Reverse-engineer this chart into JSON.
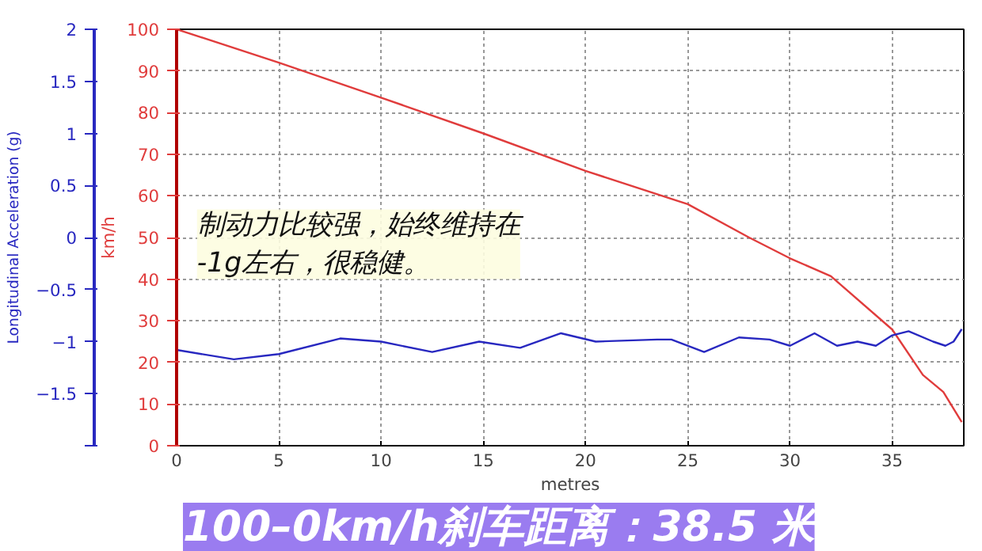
{
  "chart_data": {
    "type": "line",
    "title": "100–0km/h刹车距离：38.5 米",
    "xlabel": "metres",
    "ylabel": "km/h",
    "y2label": "Longitudinal Acceleration (g)",
    "annotations": [
      "制动力比较强，始终维持在\n-1g左右，很稳健。"
    ],
    "xlim": [
      0,
      38.5
    ],
    "xticks": [
      0,
      5,
      10,
      15,
      20,
      25,
      30,
      35
    ],
    "ylim": [
      0,
      100
    ],
    "yticks": [
      0,
      10,
      20,
      30,
      40,
      50,
      60,
      70,
      80,
      90,
      100
    ],
    "y2lim": [
      -2,
      2
    ],
    "y2ticks": [
      {
        "value": -2,
        "label": null
      },
      -1.5,
      -1,
      -0.5,
      0,
      0.5,
      1,
      1.5,
      2
    ],
    "grid": true,
    "line_style": "solid",
    "series": [
      {
        "color": "#e03c3c",
        "x": [
          0,
          5,
          10,
          15,
          20,
          25,
          28,
          30,
          32,
          35,
          36.5,
          37.5,
          38.4
        ],
        "values": [
          100,
          92,
          83.6,
          75,
          66,
          58,
          50,
          45,
          40.7,
          27.9,
          17,
          12.9,
          5.7
        ]
      },
      {
        "color": "#2828c0",
        "axis": "y2",
        "x": [
          0,
          2.8,
          5,
          8,
          10,
          12.5,
          14.8,
          16.8,
          18.8,
          20.5,
          23.5,
          24.2,
          25.8,
          27.5,
          29,
          30,
          31.2,
          32.3,
          33.3,
          34.2,
          35,
          35.8,
          37,
          37.6,
          38,
          38.4
        ],
        "values": [
          -1.08,
          -1.17,
          -1.12,
          -0.97,
          -1.0,
          -1.1,
          -1.0,
          -1.06,
          -0.92,
          -1.0,
          -0.98,
          -0.98,
          -1.1,
          -0.96,
          -0.98,
          -1.04,
          -0.92,
          -1.04,
          -1.0,
          -1.04,
          -0.94,
          -0.9,
          -1.0,
          -1.04,
          -1.0,
          -0.88
        ]
      }
    ]
  }
}
